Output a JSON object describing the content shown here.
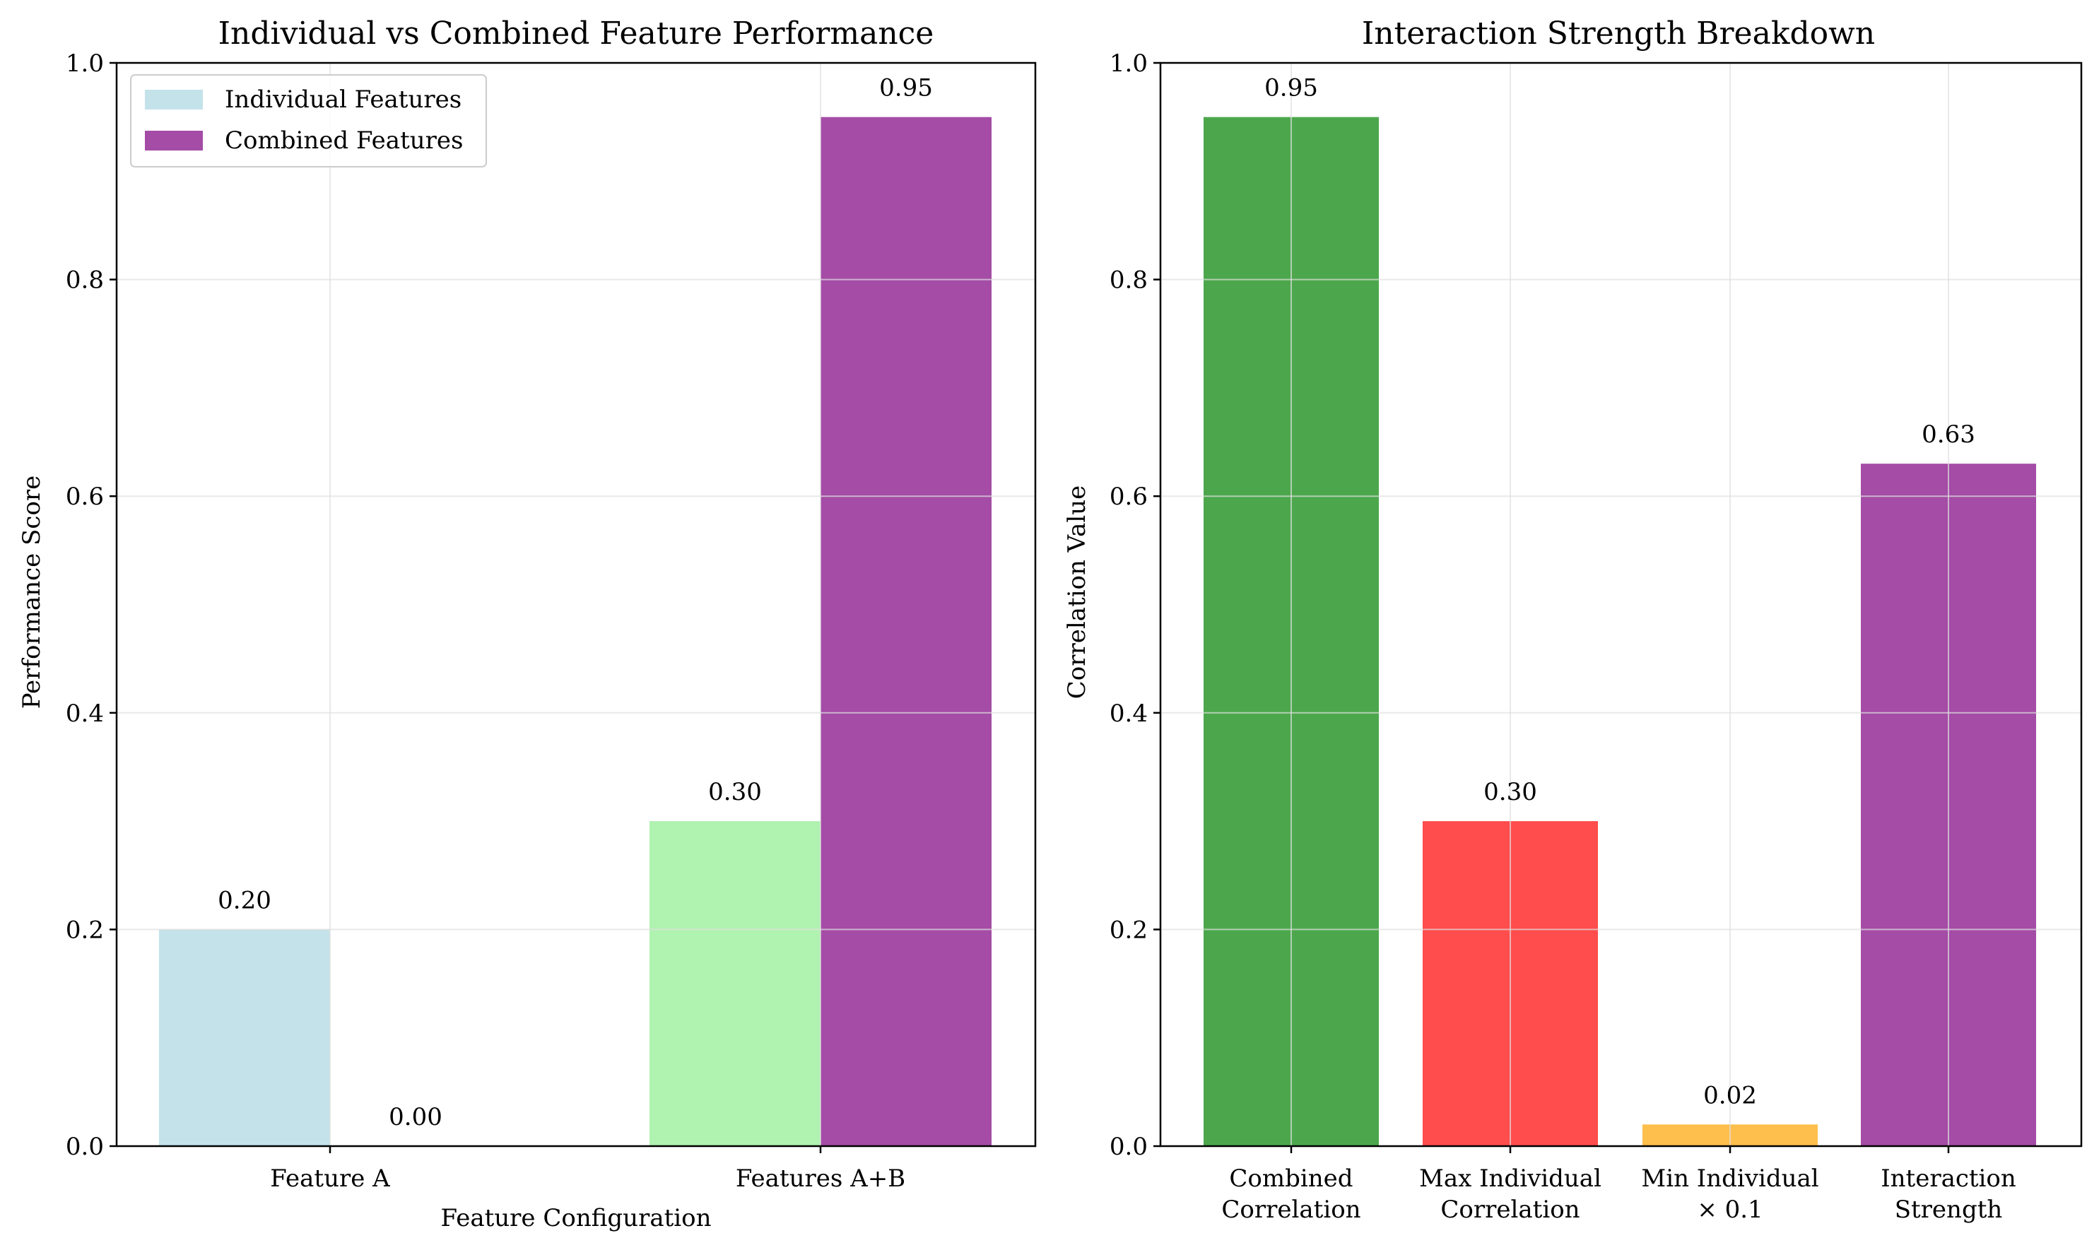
{
  "chart_data": [
    {
      "type": "bar",
      "title": "Individual vs Combined Feature Performance",
      "xlabel": "Feature Configuration",
      "ylabel": "Performance Score",
      "ylim": [
        0,
        1.0
      ],
      "yticks": [
        "0.0",
        "0.2",
        "0.4",
        "0.6",
        "0.8",
        "1.0"
      ],
      "categories": [
        "Feature A",
        "Features A+B"
      ],
      "grid": true,
      "legend_position": "top-left",
      "series": [
        {
          "name": "Individual Features",
          "values": [
            0.2,
            0.3
          ],
          "labels": [
            "0.20",
            "0.30"
          ],
          "colors": [
            "#c3e2ea",
            "#b0f2b0"
          ],
          "legend_color": "#c3e2ea"
        },
        {
          "name": "Combined Features",
          "values": [
            0.0,
            0.95
          ],
          "labels": [
            "0.00",
            "0.95"
          ],
          "colors": [
            "#a44ca6",
            "#a44ca6"
          ],
          "legend_color": "#a44ca6"
        }
      ]
    },
    {
      "type": "bar",
      "title": "Interaction Strength Breakdown",
      "xlabel": "",
      "ylabel": "Correlation Value",
      "ylim": [
        0,
        1.0
      ],
      "yticks": [
        "0.0",
        "0.2",
        "0.4",
        "0.6",
        "0.8",
        "1.0"
      ],
      "grid": true,
      "categories": [
        [
          "Combined",
          "Correlation"
        ],
        [
          "Max Individual",
          "Correlation"
        ],
        [
          "Min Individual",
          "× 0.1"
        ],
        [
          "Interaction",
          "Strength"
        ]
      ],
      "values": [
        0.95,
        0.3,
        0.02,
        0.63
      ],
      "labels": [
        "0.95",
        "0.30",
        "0.02",
        "0.63"
      ],
      "colors": [
        "#4ca74c",
        "#ff4c4c",
        "#ffbf4c",
        "#a44ca6"
      ]
    }
  ]
}
